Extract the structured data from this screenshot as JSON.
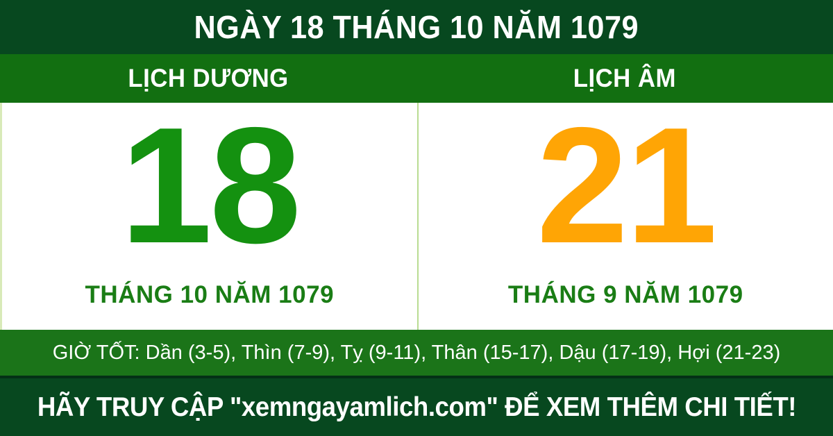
{
  "header": {
    "title": "NGÀY 18 THÁNG 10 NĂM 1079"
  },
  "columns": {
    "solar": {
      "heading": "LỊCH DƯƠNG",
      "day": "18",
      "month_year": "THÁNG 10 NĂM 1079"
    },
    "lunar": {
      "heading": "LỊCH ÂM",
      "day": "21",
      "month_year": "THÁNG 9 NĂM 1079"
    }
  },
  "good_hours": {
    "label": "GIỜ TỐT:",
    "value": "Dần (3-5), Thìn (7-9), Tỵ (9-11), Thân (15-17), Dậu (17-19), Hợi (21-23)"
  },
  "footer": {
    "message": "HÃY TRUY CẬP \"xemngayamlich.com\" ĐỂ XEM THÊM CHI TIẾT!",
    "site": "xemngayamlich.com"
  },
  "colors": {
    "dark_green_bar": "#07481f",
    "green_bar": "#126f11",
    "good_hours_bar": "#1b7419",
    "solar_day_green": "#149110",
    "lunar_day_orange": "#ffa505",
    "month_text_green": "#1a7d15",
    "divider_light_green": "#b9dc92",
    "panel_background": "#ffffff"
  }
}
